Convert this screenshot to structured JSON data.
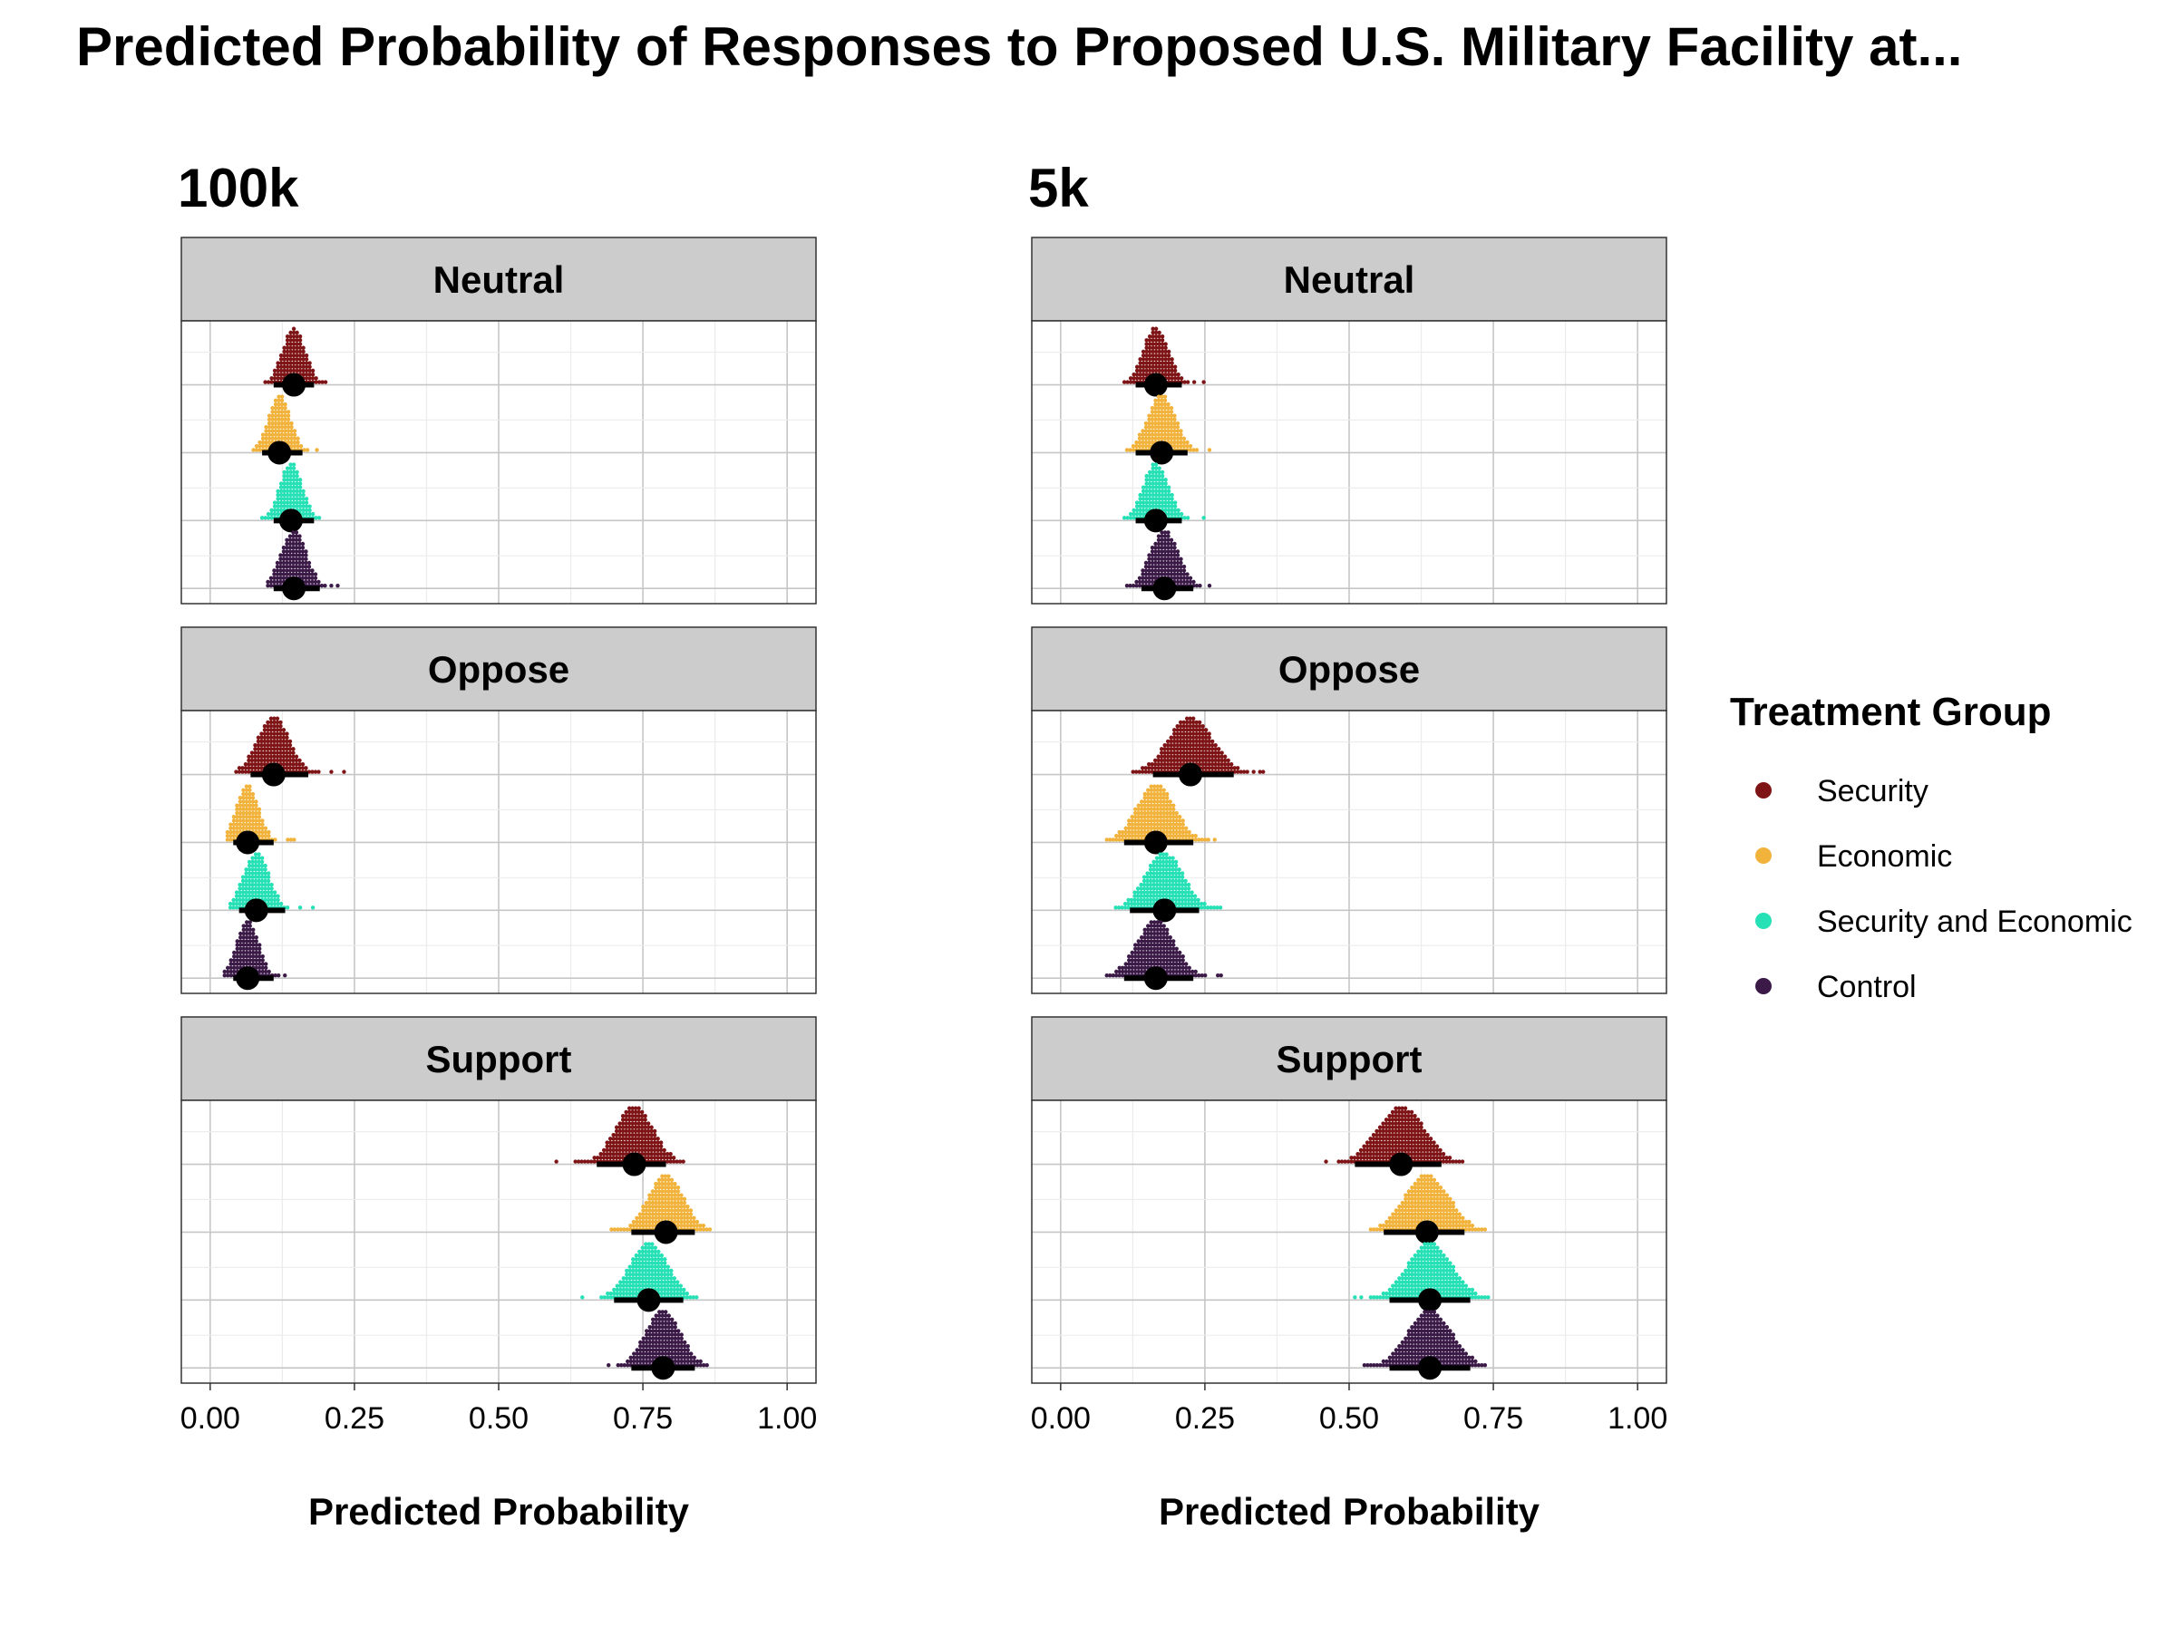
{
  "chart_data": {
    "type": "dotplot",
    "title": "Predicted Probability of Responses to Proposed U.S. Military Facility at...",
    "xlabel": "Predicted Probability",
    "xlim": [
      -0.05,
      1.05
    ],
    "xticks": [
      "0.00",
      "0.25",
      "0.50",
      "0.75",
      "1.00"
    ],
    "xtick_values": [
      0,
      0.25,
      0.5,
      0.75,
      1.0
    ],
    "grid": true,
    "legend": {
      "title": "Treatment Group",
      "position": "right",
      "items": [
        {
          "name": "Security",
          "color": "#7f1416"
        },
        {
          "name": "Economic",
          "color": "#f2b33d"
        },
        {
          "name": "Security and Economic",
          "color": "#26e0b6"
        },
        {
          "name": "Control",
          "color": "#3b1a47"
        }
      ]
    },
    "facets": [
      {
        "label": "100k",
        "panels": [
          {
            "response": "Neutral",
            "groups": [
              {
                "name": "Security",
                "mean": 0.145,
                "lo": 0.11,
                "hi": 0.18,
                "min": 0.09,
                "max": 0.215
              },
              {
                "name": "Economic",
                "mean": 0.12,
                "lo": 0.09,
                "hi": 0.16,
                "min": 0.075,
                "max": 0.19
              },
              {
                "name": "Security and Economic",
                "mean": 0.14,
                "lo": 0.11,
                "hi": 0.18,
                "min": 0.09,
                "max": 0.21
              },
              {
                "name": "Control",
                "mean": 0.145,
                "lo": 0.11,
                "hi": 0.19,
                "min": 0.1,
                "max": 0.23
              }
            ]
          },
          {
            "response": "Oppose",
            "groups": [
              {
                "name": "Security",
                "mean": 0.11,
                "lo": 0.07,
                "hi": 0.17,
                "min": 0.045,
                "max": 0.25
              },
              {
                "name": "Economic",
                "mean": 0.065,
                "lo": 0.04,
                "hi": 0.11,
                "min": 0.03,
                "max": 0.16
              },
              {
                "name": "Security and Economic",
                "mean": 0.08,
                "lo": 0.05,
                "hi": 0.13,
                "min": 0.035,
                "max": 0.195
              },
              {
                "name": "Control",
                "mean": 0.065,
                "lo": 0.04,
                "hi": 0.11,
                "min": 0.025,
                "max": 0.15
              }
            ]
          },
          {
            "response": "Support",
            "groups": [
              {
                "name": "Security",
                "mean": 0.735,
                "lo": 0.67,
                "hi": 0.79,
                "min": 0.6,
                "max": 0.825
              },
              {
                "name": "Economic",
                "mean": 0.79,
                "lo": 0.73,
                "hi": 0.84,
                "min": 0.69,
                "max": 0.875
              },
              {
                "name": "Security and Economic",
                "mean": 0.76,
                "lo": 0.7,
                "hi": 0.82,
                "min": 0.645,
                "max": 0.845
              },
              {
                "name": "Control",
                "mean": 0.785,
                "lo": 0.73,
                "hi": 0.84,
                "min": 0.685,
                "max": 0.865
              }
            ]
          }
        ]
      },
      {
        "label": "5k",
        "panels": [
          {
            "response": "Neutral",
            "groups": [
              {
                "name": "Security",
                "mean": 0.165,
                "lo": 0.13,
                "hi": 0.21,
                "min": 0.105,
                "max": 0.25
              },
              {
                "name": "Economic",
                "mean": 0.175,
                "lo": 0.13,
                "hi": 0.22,
                "min": 0.115,
                "max": 0.26
              },
              {
                "name": "Security and Economic",
                "mean": 0.165,
                "lo": 0.13,
                "hi": 0.21,
                "min": 0.105,
                "max": 0.255
              },
              {
                "name": "Control",
                "mean": 0.18,
                "lo": 0.14,
                "hi": 0.23,
                "min": 0.115,
                "max": 0.275
              }
            ]
          },
          {
            "response": "Oppose",
            "groups": [
              {
                "name": "Security",
                "mean": 0.225,
                "lo": 0.16,
                "hi": 0.3,
                "min": 0.12,
                "max": 0.365
              },
              {
                "name": "Economic",
                "mean": 0.165,
                "lo": 0.11,
                "hi": 0.23,
                "min": 0.08,
                "max": 0.28
              },
              {
                "name": "Security and Economic",
                "mean": 0.18,
                "lo": 0.12,
                "hi": 0.24,
                "min": 0.09,
                "max": 0.295
              },
              {
                "name": "Control",
                "mean": 0.165,
                "lo": 0.11,
                "hi": 0.23,
                "min": 0.08,
                "max": 0.28
              }
            ]
          },
          {
            "response": "Support",
            "groups": [
              {
                "name": "Security",
                "mean": 0.59,
                "lo": 0.51,
                "hi": 0.66,
                "min": 0.46,
                "max": 0.7
              },
              {
                "name": "Economic",
                "mean": 0.635,
                "lo": 0.56,
                "hi": 0.7,
                "min": 0.51,
                "max": 0.74
              },
              {
                "name": "Security and Economic",
                "mean": 0.64,
                "lo": 0.57,
                "hi": 0.71,
                "min": 0.51,
                "max": 0.745
              },
              {
                "name": "Control",
                "mean": 0.64,
                "lo": 0.57,
                "hi": 0.71,
                "min": 0.51,
                "max": 0.74
              }
            ]
          }
        ]
      }
    ]
  }
}
